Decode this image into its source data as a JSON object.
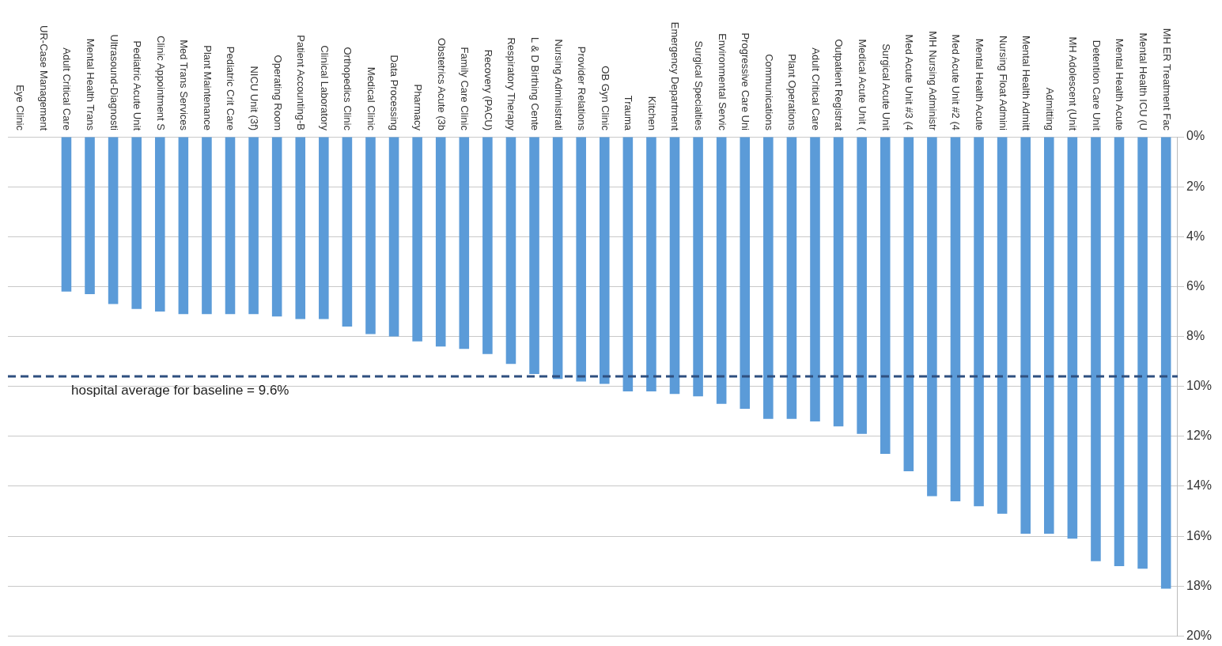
{
  "chart_data": {
    "type": "bar",
    "categories": [
      "Eye Clinic",
      "UR-Case Management",
      "Adult Critical Care",
      "Mental Health Trans",
      "Ultrasound-Diagnosti",
      "Pediatric Acute Unit",
      "Clinic Appointment S",
      "Med Trans Services",
      "Plant Maintenance",
      "Pediatric Crit Care",
      "NICU Unit (3f)",
      "Operating Room",
      "Patient Accounting-B",
      "Clinical Laboratory",
      "Orthopedics Clinic",
      "Medical Clinic",
      "Data Processing",
      "Pharmacy",
      "Obstetrics Acute (3b",
      "Family Care Clinic",
      "Recovery (PACU)",
      "Respiratory Therapy",
      "L & D Birthing Cente",
      "Nursing Administrati",
      "Provider Relations",
      "OB Gyn Clinic",
      "Trauma",
      "Kitchen",
      "Emergency Department",
      "Surgical Specialties",
      "Environmental Servic",
      "Progressive Care Uni",
      "Communications",
      "Plant Operations",
      "Adult Critical Care",
      "Outpatient Registrat",
      "Medical Acute Unit (",
      "Surgical Acute Unit",
      "Med Acute Unit #3 (4",
      "MH Nursing Administr",
      "Med Acute Unit #2 (4",
      "Mental Health Acute",
      "Nursing Float Admini",
      "Mental Health Admitt",
      "Admitting",
      "MH Adolescent (Unit",
      "Detention Care Unit",
      "Mental Health Acute",
      "Mental Health ICU (U",
      "MH ER Treatment Fac"
    ],
    "values": [
      null,
      null,
      6.2,
      6.3,
      6.7,
      6.9,
      7.0,
      7.1,
      7.1,
      7.1,
      7.1,
      7.2,
      7.3,
      7.3,
      7.6,
      7.9,
      8.0,
      8.2,
      8.4,
      8.5,
      8.7,
      9.1,
      9.5,
      9.7,
      9.8,
      9.9,
      10.2,
      10.2,
      10.3,
      10.4,
      10.7,
      10.9,
      11.3,
      11.3,
      11.4,
      11.6,
      11.9,
      12.7,
      13.4,
      14.4,
      14.6,
      14.8,
      15.1,
      15.9,
      15.9,
      16.1,
      17.0,
      17.2,
      17.3,
      18.1
    ],
    "color": "#5b9bd8",
    "ylim": [
      20,
      0
    ],
    "yticks": [
      {
        "value": 0,
        "label": "0%"
      },
      {
        "value": 2,
        "label": "2%"
      },
      {
        "value": 4,
        "label": "4%"
      },
      {
        "value": 6,
        "label": "6%"
      },
      {
        "value": 8,
        "label": "8%"
      },
      {
        "value": 10,
        "label": "10%"
      },
      {
        "value": 12,
        "label": "12%"
      },
      {
        "value": 14,
        "label": "14%"
      },
      {
        "value": 16,
        "label": "16%"
      },
      {
        "value": 18,
        "label": "18%"
      },
      {
        "value": 20,
        "label": "20%"
      }
    ],
    "grid": "y",
    "ref_lines": [
      {
        "axis": "y",
        "value": 9.6,
        "label": "hospital average for baseline = 9.6%",
        "color": "#2e4f7f",
        "line_style": "dashed"
      }
    ]
  }
}
